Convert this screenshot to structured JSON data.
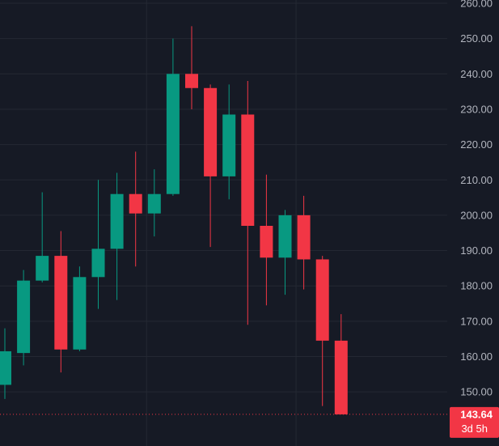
{
  "chart_data": {
    "type": "candlestick",
    "y_axis_labels": [
      "260.00",
      "250.00",
      "240.00",
      "230.00",
      "220.00",
      "210.00",
      "200.00",
      "190.00",
      "180.00",
      "170.00",
      "160.00",
      "150.00"
    ],
    "ylim": [
      140,
      260
    ],
    "grid": true,
    "candles": [
      {
        "open": 152.0,
        "high": 168.0,
        "low": 148.0,
        "close": 161.5
      },
      {
        "open": 161.0,
        "high": 184.5,
        "low": 157.5,
        "close": 181.5
      },
      {
        "open": 181.5,
        "high": 206.5,
        "low": 181.0,
        "close": 188.5
      },
      {
        "open": 188.5,
        "high": 195.5,
        "low": 155.5,
        "close": 162.0
      },
      {
        "open": 162.0,
        "high": 185.5,
        "low": 161.5,
        "close": 182.5
      },
      {
        "open": 182.5,
        "high": 210.0,
        "low": 173.5,
        "close": 190.5
      },
      {
        "open": 190.5,
        "high": 212.0,
        "low": 176.0,
        "close": 206.0
      },
      {
        "open": 206.0,
        "high": 218.0,
        "low": 185.5,
        "close": 200.5
      },
      {
        "open": 200.5,
        "high": 213.0,
        "low": 194.0,
        "close": 206.0
      },
      {
        "open": 206.0,
        "high": 250.0,
        "low": 205.5,
        "close": 240.0
      },
      {
        "open": 240.0,
        "high": 253.5,
        "low": 230.0,
        "close": 236.0
      },
      {
        "open": 236.0,
        "high": 237.0,
        "low": 191.0,
        "close": 211.0
      },
      {
        "open": 211.0,
        "high": 237.0,
        "low": 204.5,
        "close": 228.5
      },
      {
        "open": 228.5,
        "high": 238.0,
        "low": 169.0,
        "close": 197.0
      },
      {
        "open": 197.0,
        "high": 211.5,
        "low": 174.5,
        "close": 188.0
      },
      {
        "open": 188.0,
        "high": 201.5,
        "low": 177.5,
        "close": 200.0
      },
      {
        "open": 200.0,
        "high": 205.5,
        "low": 179.0,
        "close": 187.5
      },
      {
        "open": 187.5,
        "high": 188.5,
        "low": 146.0,
        "close": 164.5
      },
      {
        "open": 164.5,
        "high": 172.0,
        "low": 143.64,
        "close": 143.64
      }
    ],
    "last_price": "143.64",
    "countdown": "3d 5h",
    "colors": {
      "background": "#161a25",
      "grid": "#242833",
      "up": "#089981",
      "down": "#f23645",
      "axis_text": "#b2b5be",
      "price_tag": "#f23645"
    }
  }
}
